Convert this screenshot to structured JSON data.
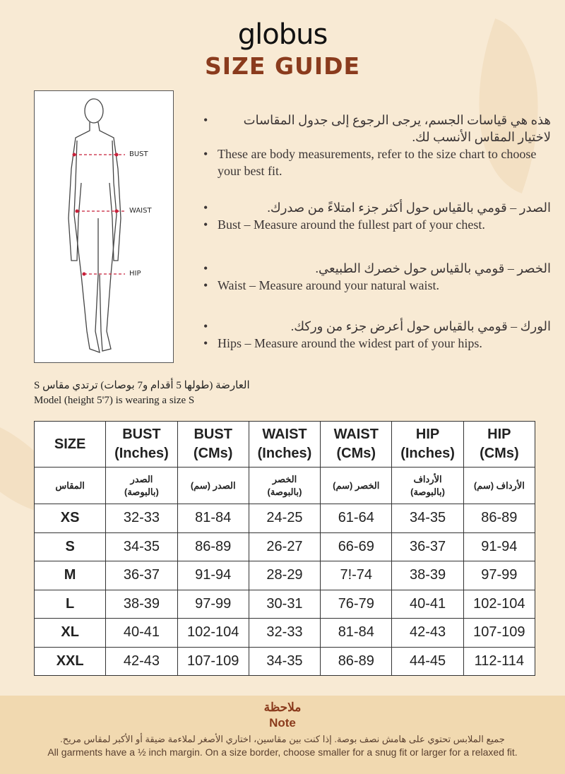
{
  "brand": "globus",
  "title": "SIZE GUIDE",
  "figure": {
    "labels": [
      "BUST",
      "WAIST",
      "HIP"
    ],
    "line_color": "#c8203a"
  },
  "bullets": [
    {
      "ar": "هذه هي قياسات الجسم، يرجى الرجوع إلى جدول المقاسات لاختيار المقاس الأنسب لك.",
      "en": "These are body measurements, refer to the size chart to choose your best fit."
    },
    {
      "ar": "الصدر – قومي بالقياس حول أكثر جزء امتلاءً من صدرك.",
      "en": "Bust – Measure around the fullest part of your chest."
    },
    {
      "ar": "الخصر – قومي بالقياس حول خصرك الطبيعي.",
      "en": "Waist – Measure around your natural waist."
    },
    {
      "ar": "الورك – قومي بالقياس حول أعرض جزء من وركك.",
      "en": "Hips – Measure around the widest part of your hips."
    }
  ],
  "model": {
    "ar": "العارضة (طولها 5 أقدام و7 بوصات) ترتدي مقاس S",
    "en": "Model (height 5'7) is wearing a size S"
  },
  "table": {
    "headers": [
      [
        "SIZE",
        ""
      ],
      [
        "BUST",
        "(Inches)"
      ],
      [
        "BUST",
        "(CMs)"
      ],
      [
        "WAIST",
        "(Inches)"
      ],
      [
        "WAIST",
        "(CMs)"
      ],
      [
        "HIP",
        "(Inches)"
      ],
      [
        "HIP",
        "(CMs)"
      ]
    ],
    "headers_ar": [
      [
        "المقاس",
        ""
      ],
      [
        "الصدر",
        "(بالبوصة)"
      ],
      [
        "الصدر (سم)",
        ""
      ],
      [
        "الخصر",
        "(بالبوصة)"
      ],
      [
        "الخصر (سم)",
        ""
      ],
      [
        "الأرداف",
        "(بالبوصة)"
      ],
      [
        "الأرداف (سم)",
        ""
      ]
    ],
    "rows": [
      [
        "XS",
        "32-33",
        "81-84",
        "24-25",
        "61-64",
        "34-35",
        "86-89"
      ],
      [
        "S",
        "34-35",
        "86-89",
        "26-27",
        "66-69",
        "36-37",
        "91-94"
      ],
      [
        "M",
        "36-37",
        "91-94",
        "28-29",
        "7!-74",
        "38-39",
        "97-99"
      ],
      [
        "L",
        "38-39",
        "97-99",
        "30-31",
        "76-79",
        "40-41",
        "102-104"
      ],
      [
        "XL",
        "40-41",
        "102-104",
        "32-33",
        "81-84",
        "42-43",
        "107-109"
      ],
      [
        "XXL",
        "42-43",
        "107-109",
        "34-35",
        "86-89",
        "44-45",
        "112-114"
      ]
    ]
  },
  "note": {
    "title_ar": "ملاحظة",
    "title": "Note",
    "text_ar": "جميع الملابس تحتوي على هامش نصف بوصة. إذا كنت بين مقاسين، اختاري الأصغر لملاءمة ضيقة أو الأكبر لمقاس مريح.",
    "text": "All garments have a ½ inch margin. On a size border, choose smaller for a snug fit or larger for a relaxed fit."
  },
  "colors": {
    "background": "#f8ead4",
    "accent": "#8a3b1d",
    "note_bg": "#f1d9b0"
  }
}
